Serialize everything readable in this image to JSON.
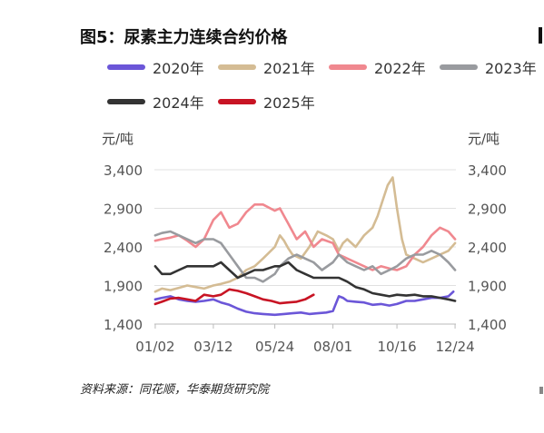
{
  "title": "图5：尿素主力连续合约价格",
  "source": "资料来源：同花顺，华泰期货研究院",
  "chart_data": {
    "type": "line",
    "y_unit_left": "元/吨",
    "y_unit_right": "元/吨",
    "ylim": [
      1400,
      3400
    ],
    "y_ticks": [
      "1,400",
      "1,900",
      "2,400",
      "2,900",
      "3,400"
    ],
    "y_tick_values": [
      1400,
      1900,
      2400,
      2900,
      3400
    ],
    "xlim": [
      1,
      359
    ],
    "x_ticks": [
      "01/02",
      "03/12",
      "05/24",
      "08/01",
      "10/16",
      "12/24"
    ],
    "x_tick_positions": [
      2,
      71,
      144,
      213,
      289,
      358
    ],
    "grid": "horizontal",
    "legend_position": "top",
    "series": [
      {
        "name": "2020年",
        "color": "#6b56d8",
        "x": [
          2,
          10,
          20,
          30,
          40,
          50,
          60,
          71,
          80,
          90,
          100,
          110,
          120,
          130,
          144,
          155,
          165,
          175,
          185,
          195,
          205,
          213,
          220,
          225,
          230,
          240,
          250,
          260,
          270,
          280,
          289,
          300,
          310,
          320,
          330,
          340,
          350,
          356
        ],
        "y": [
          1720,
          1740,
          1760,
          1720,
          1700,
          1690,
          1700,
          1720,
          1680,
          1650,
          1600,
          1560,
          1540,
          1530,
          1520,
          1530,
          1540,
          1550,
          1530,
          1540,
          1550,
          1570,
          1760,
          1740,
          1700,
          1690,
          1680,
          1650,
          1660,
          1640,
          1660,
          1700,
          1700,
          1720,
          1740,
          1740,
          1760,
          1820
        ]
      },
      {
        "name": "2021年",
        "color": "#d4bc94",
        "x": [
          2,
          10,
          20,
          30,
          40,
          50,
          60,
          71,
          80,
          90,
          100,
          110,
          120,
          130,
          144,
          150,
          155,
          160,
          165,
          175,
          185,
          195,
          205,
          213,
          220,
          225,
          230,
          240,
          250,
          260,
          266,
          272,
          278,
          284,
          289,
          295,
          300,
          310,
          320,
          330,
          340,
          350,
          358
        ],
        "y": [
          1820,
          1860,
          1840,
          1870,
          1900,
          1880,
          1860,
          1900,
          1920,
          1950,
          2000,
          2100,
          2150,
          2250,
          2400,
          2550,
          2480,
          2380,
          2300,
          2250,
          2400,
          2600,
          2550,
          2500,
          2350,
          2450,
          2500,
          2400,
          2550,
          2650,
          2800,
          3000,
          3200,
          3300,
          2900,
          2500,
          2300,
          2250,
          2200,
          2250,
          2300,
          2350,
          2450
        ]
      },
      {
        "name": "2022年",
        "color": "#f0888f",
        "x": [
          2,
          10,
          20,
          30,
          40,
          50,
          60,
          71,
          80,
          90,
          100,
          110,
          120,
          130,
          144,
          150,
          155,
          160,
          170,
          180,
          190,
          200,
          213,
          220,
          230,
          240,
          250,
          260,
          270,
          280,
          289,
          300,
          310,
          320,
          330,
          340,
          350,
          358
        ],
        "y": [
          2480,
          2500,
          2520,
          2550,
          2480,
          2400,
          2500,
          2750,
          2850,
          2650,
          2700,
          2850,
          2950,
          2950,
          2870,
          2900,
          2800,
          2700,
          2500,
          2600,
          2400,
          2500,
          2450,
          2300,
          2250,
          2200,
          2150,
          2100,
          2150,
          2120,
          2100,
          2150,
          2300,
          2400,
          2550,
          2650,
          2600,
          2500
        ]
      },
      {
        "name": "2023年",
        "color": "#999b9f",
        "x": [
          2,
          10,
          20,
          30,
          40,
          50,
          60,
          71,
          80,
          90,
          100,
          110,
          120,
          130,
          144,
          150,
          160,
          170,
          180,
          190,
          200,
          213,
          220,
          230,
          240,
          250,
          260,
          270,
          280,
          289,
          300,
          310,
          320,
          330,
          340,
          350,
          358
        ],
        "y": [
          2550,
          2580,
          2600,
          2550,
          2500,
          2450,
          2500,
          2500,
          2450,
          2300,
          2150,
          2000,
          2000,
          1950,
          2050,
          2150,
          2250,
          2300,
          2250,
          2200,
          2100,
          2200,
          2300,
          2200,
          2150,
          2100,
          2150,
          2050,
          2100,
          2150,
          2250,
          2300,
          2300,
          2350,
          2300,
          2200,
          2100
        ]
      },
      {
        "name": "2024年",
        "color": "#333333",
        "x": [
          2,
          10,
          20,
          30,
          40,
          50,
          60,
          71,
          80,
          90,
          100,
          110,
          120,
          130,
          144,
          150,
          160,
          170,
          180,
          190,
          200,
          213,
          220,
          230,
          240,
          250,
          260,
          270,
          280,
          289,
          300,
          310,
          320,
          330,
          340,
          350,
          358
        ],
        "y": [
          2150,
          2050,
          2050,
          2100,
          2150,
          2150,
          2150,
          2150,
          2200,
          2100,
          2000,
          2050,
          2100,
          2100,
          2150,
          2150,
          2200,
          2100,
          2050,
          2000,
          2000,
          2000,
          2000,
          1950,
          1880,
          1850,
          1800,
          1780,
          1760,
          1780,
          1770,
          1780,
          1760,
          1760,
          1740,
          1720,
          1700
        ]
      },
      {
        "name": "2025年",
        "color": "#c81424",
        "x": [
          2,
          10,
          20,
          30,
          40,
          50,
          60,
          71,
          80,
          90,
          100,
          110,
          120,
          130,
          140,
          150,
          160,
          170,
          180,
          190
        ],
        "y": [
          1660,
          1690,
          1730,
          1740,
          1720,
          1700,
          1780,
          1760,
          1780,
          1850,
          1830,
          1800,
          1760,
          1720,
          1700,
          1670,
          1680,
          1690,
          1720,
          1780
        ]
      }
    ]
  }
}
